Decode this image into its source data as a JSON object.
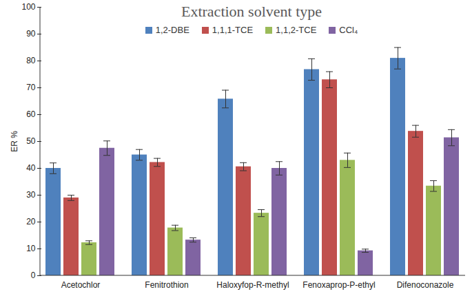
{
  "chart_data": {
    "type": "bar",
    "title": "Extraction solvent type",
    "y_label": "ER %",
    "categories": [
      "Acetochlor",
      "Fenitrothion",
      "Haloxyfop-R-methyl",
      "Fenoxaprop-P-ethyl",
      "Difenoconazole"
    ],
    "series": [
      {
        "name": "1,2-DBE",
        "color": "#4f81bd",
        "values": [
          40,
          45,
          65.8,
          76.8,
          81
        ],
        "errors": [
          2,
          2,
          3.3,
          4,
          4
        ]
      },
      {
        "name": "1,1,1-TCE",
        "color": "#c0504d",
        "values": [
          29,
          42.2,
          40.6,
          73,
          53.8
        ],
        "errors": [
          1,
          1.5,
          1.5,
          3,
          2.2
        ]
      },
      {
        "name": "1,1,2-TCE",
        "color": "#9bbb59",
        "values": [
          12.3,
          17.8,
          23.3,
          43,
          33.4
        ],
        "errors": [
          0.7,
          1,
          1.3,
          2.7,
          2
        ]
      },
      {
        "name": "CCl₄",
        "color": "#8064a2",
        "values": [
          47.5,
          13.3,
          40,
          9.3,
          51.4
        ],
        "errors": [
          2.7,
          0.8,
          2.5,
          0.6,
          3
        ]
      }
    ],
    "ylim": [
      0,
      100
    ],
    "yticks": [
      0,
      10,
      20,
      30,
      40,
      50,
      60,
      70,
      80,
      90,
      100
    ],
    "grid": false,
    "legend": "top"
  }
}
